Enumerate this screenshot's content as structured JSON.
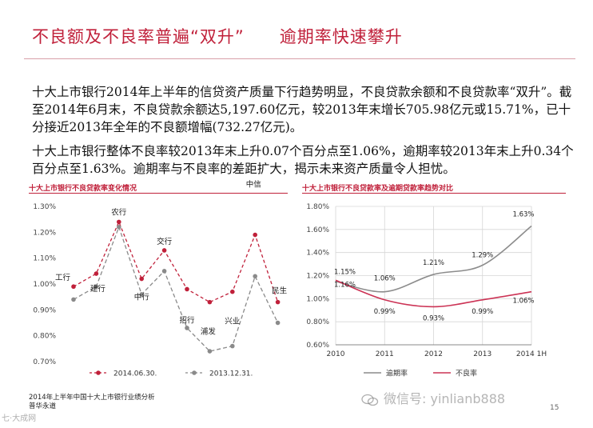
{
  "slide": {
    "title": "不良额及不良率普遍“双升”　　逾期率快速攀升",
    "paragraph1": "十大上市银行2014年上半年的信贷资产质量下行趋势明显，不良贷款余额和不良贷款率“双升”。截至2014年6月末，不良贷款余额达5,197.60亿元，较2013年末增长705.98亿元或15.71%，已十分接近2013年全年的不良额增幅(732.27亿元)。",
    "paragraph2": "十大上市银行整体不良率较2013年末上升0.07个百分点至1.06%，逾期率较2013年末上升0.34个百分点至1.63%。逾期率与不良率的差距扩大，揭示未来资产质量令人担忧。",
    "footer_line1": "2014年上半年中国十大上市银行业绩分析",
    "footer_line2": "普华永道",
    "page_number": "15",
    "watermark": "微信号: yinlian​b888",
    "corner_logo": "七·大成网"
  },
  "colors": {
    "accent": "#c0203a",
    "series_2014": "#c0203a",
    "series_2013": "#8a8a8a",
    "overdue": "#8c8c8c",
    "npl": "#cc3355"
  },
  "chart_data": [
    {
      "type": "line",
      "title": "十大上市银行不良贷款率变化情况",
      "categories": [
        "工行",
        "建行",
        "农行",
        "中行",
        "交行",
        "招行",
        "浦发",
        "兴业",
        "中信",
        "民生"
      ],
      "series": [
        {
          "name": "2014.06.30.",
          "values": [
            0.99,
            1.04,
            1.24,
            1.02,
            1.13,
            0.98,
            0.93,
            0.97,
            1.19,
            0.93
          ]
        },
        {
          "name": "2013.12.31.",
          "values": [
            0.94,
            0.99,
            1.22,
            0.96,
            1.05,
            0.83,
            0.74,
            0.76,
            1.03,
            0.85
          ]
        }
      ],
      "y_ticks": [
        "1.30%",
        "1.20%",
        "1.10%",
        "1.00%",
        "0.90%",
        "0.80%",
        "0.70%"
      ],
      "ylim": [
        0.7,
        1.3
      ],
      "legend": "bottom"
    },
    {
      "type": "line",
      "title": "十大上市银行不良贷款率及逾期贷款率趋势对比",
      "x": [
        "2010",
        "2011",
        "2012",
        "2013",
        "2014 1H"
      ],
      "series": [
        {
          "name": "逾期率",
          "values": [
            1.15,
            1.06,
            1.21,
            1.29,
            1.63
          ],
          "labels": [
            "1.15%",
            "1.06%",
            "1.21%",
            "1.29%",
            "1.63%"
          ]
        },
        {
          "name": "不良率",
          "values": [
            1.16,
            0.99,
            0.93,
            0.99,
            1.06
          ],
          "labels": [
            "1.16%",
            "0.99%",
            "0.93%",
            "0.99%",
            "1.06%"
          ]
        }
      ],
      "y_ticks": [
        "1.80%",
        "1.60%",
        "1.40%",
        "1.20%",
        "1.00%",
        "0.80%",
        "0.60%"
      ],
      "ylim": [
        0.6,
        1.8
      ],
      "grid": true,
      "legend": "bottom"
    }
  ]
}
